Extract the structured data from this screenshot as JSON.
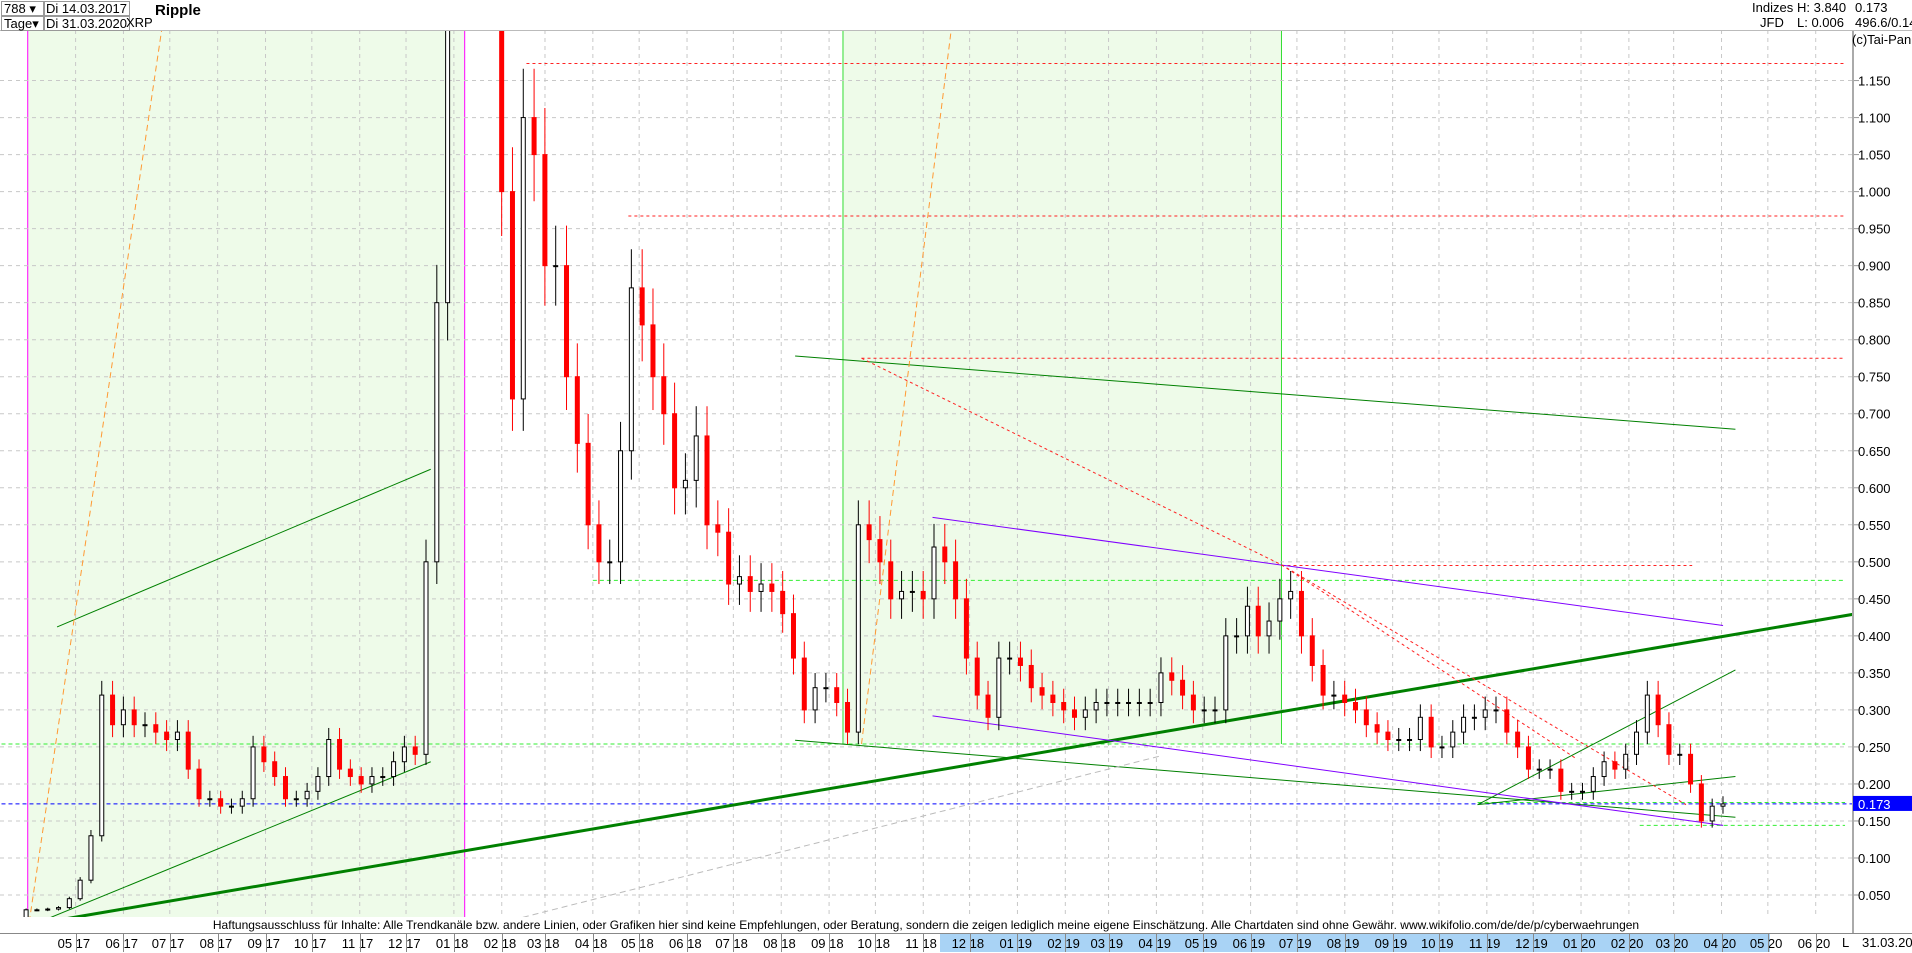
{
  "header": {
    "bars_count": "788",
    "period": "Tage",
    "date_from": "Di 14.03.2017",
    "date_to": "Di 31.03.2020",
    "symbol": "XRP",
    "name": "Ripple",
    "exchange_top": "Indizes",
    "exchange_bottom": "JFD",
    "high": "H: 3.840",
    "low": "L: 0.006",
    "last": "0.173",
    "extra": "496.6/0.14",
    "copyright": "(c)Tai-Pan"
  },
  "footer": {
    "disclaimer": "Haftungsausschluss für Inhalte: Alle Trendkanäle bzw. andere Linien, oder Grafiken hier sind keine Empfehlungen, oder Beratung, sondern die zeigen lediglich meine eigene Einschätzung. Alle Chartdaten sind ohne Gewähr.  www.wikifolio.com/de/de/p/cyberwaehrungen",
    "scale_mode": "L",
    "last_date": "31.03.20"
  },
  "colors": {
    "up": "#000000",
    "down": "#ff0000",
    "last_price_bg": "#0000ff",
    "green_zone": "#eefbe9",
    "trend_green": "#008000",
    "trend_purple": "#8000ff"
  },
  "chart_data": {
    "type": "candlestick",
    "title": "Ripple",
    "ylim": [
      0,
      1.2
    ],
    "yticks": [
      "0.050",
      "0.100",
      "0.150",
      "0.200",
      "0.250",
      "0.300",
      "0.350",
      "0.400",
      "0.450",
      "0.500",
      "0.550",
      "0.600",
      "0.650",
      "0.700",
      "0.750",
      "0.800",
      "0.850",
      "0.900",
      "0.950",
      "1.000",
      "1.050",
      "1.100",
      "1.150"
    ],
    "last_price_label": "0.173",
    "grid": true,
    "xticks": [
      "05 17",
      "06 17",
      "07 17",
      "08 17",
      "09 17",
      "10 17",
      "11 17",
      "12 17",
      "01 18",
      "02 18",
      "03 18",
      "04 18",
      "05 18",
      "06 18",
      "07 18",
      "08 18",
      "09 18",
      "10 18",
      "11 18",
      "12 18",
      "01 19",
      "02 19",
      "03 19",
      "04 19",
      "05 19",
      "06 19",
      "07 19",
      "08 19",
      "09 19",
      "10 19",
      "11 19",
      "12 19",
      "01 20",
      "02 20",
      "03 20",
      "04 20",
      "05 20",
      "06 20"
    ],
    "series": {
      "start_date": "2017-03-14",
      "interval": "week",
      "close": [
        0.008,
        0.009,
        0.03,
        0.03,
        0.031,
        0.033,
        0.045,
        0.07,
        0.13,
        0.32,
        0.28,
        0.3,
        0.28,
        0.28,
        0.27,
        0.26,
        0.27,
        0.22,
        0.18,
        0.18,
        0.17,
        0.17,
        0.18,
        0.25,
        0.23,
        0.21,
        0.18,
        0.18,
        0.19,
        0.21,
        0.26,
        0.22,
        0.21,
        0.2,
        0.21,
        0.21,
        0.23,
        0.25,
        0.24,
        0.5,
        0.85,
        1.3,
        2.8,
        1.9,
        1.4,
        1.3,
        1.0,
        0.72,
        1.1,
        1.05,
        0.9,
        0.9,
        0.75,
        0.66,
        0.55,
        0.5,
        0.5,
        0.65,
        0.87,
        0.82,
        0.75,
        0.7,
        0.6,
        0.61,
        0.67,
        0.55,
        0.54,
        0.47,
        0.48,
        0.46,
        0.47,
        0.46,
        0.43,
        0.37,
        0.3,
        0.33,
        0.33,
        0.31,
        0.27,
        0.55,
        0.53,
        0.5,
        0.45,
        0.46,
        0.46,
        0.45,
        0.52,
        0.5,
        0.45,
        0.37,
        0.32,
        0.29,
        0.37,
        0.37,
        0.36,
        0.33,
        0.32,
        0.31,
        0.3,
        0.29,
        0.3,
        0.31,
        0.31,
        0.31,
        0.31,
        0.31,
        0.31,
        0.35,
        0.34,
        0.32,
        0.3,
        0.3,
        0.3,
        0.4,
        0.4,
        0.44,
        0.4,
        0.42,
        0.45,
        0.46,
        0.4,
        0.36,
        0.32,
        0.32,
        0.31,
        0.3,
        0.28,
        0.27,
        0.26,
        0.26,
        0.26,
        0.29,
        0.25,
        0.25,
        0.27,
        0.29,
        0.29,
        0.3,
        0.3,
        0.27,
        0.25,
        0.22,
        0.22,
        0.22,
        0.19,
        0.19,
        0.19,
        0.21,
        0.23,
        0.22,
        0.24,
        0.27,
        0.32,
        0.28,
        0.24,
        0.24,
        0.2,
        0.15,
        0.17,
        0.173
      ]
    },
    "zones": [
      {
        "from": "2017-03-31",
        "to": "2018-01-08",
        "low": 0,
        "high": 1.3,
        "color": "#eefbe9",
        "edge": "#ff00ff"
      },
      {
        "from": "2018-09-10",
        "to": "2019-06-21",
        "low": 0.254,
        "high": 1.3,
        "color": "#eefbe9",
        "edge": "#33dd33"
      }
    ],
    "hlines": [
      {
        "price": 1.173,
        "from": "2018-02-17",
        "to": "2020-06-20",
        "color": "#ff2222",
        "dash": "3,3"
      },
      {
        "price": 0.967,
        "from": "2018-04-24",
        "to": "2020-06-20",
        "color": "#ff2222",
        "dash": "3,3"
      },
      {
        "price": 0.775,
        "from": "2018-09-22",
        "to": "2020-06-20",
        "color": "#ff2222",
        "dash": "3,3"
      },
      {
        "price": 0.495,
        "from": "2019-06-21",
        "to": "2020-03-13",
        "color": "#ff2222",
        "dash": "3,3"
      },
      {
        "price": 0.475,
        "from": "2018-04-01",
        "to": "2020-06-20",
        "color": "#33ee33",
        "dash": "4,3"
      },
      {
        "price": 0.254,
        "from": "2017-03-14",
        "to": "2020-06-20",
        "color": "#33ee33",
        "dash": "4,3"
      },
      {
        "price": 0.173,
        "from": "2017-03-14",
        "to": "2020-07-15",
        "color": "#0000ff",
        "dash": "4,3"
      },
      {
        "price": 0.175,
        "from": "2019-10-26",
        "to": "2020-06-20",
        "color": "#33ee33",
        "dash": "4,3"
      },
      {
        "price": 0.144,
        "from": "2020-02-08",
        "to": "2020-06-20",
        "color": "#33ee33",
        "dash": "4,3"
      }
    ],
    "trendlines": [
      {
        "from": [
          "2017-03-25",
          0.007
        ],
        "to": [
          "2020-08-06",
          0.444
        ],
        "color": "#008000",
        "width": 3
      },
      {
        "from": [
          "2017-04-19",
          0.412
        ],
        "to": [
          "2017-12-17",
          0.625
        ],
        "color": "#008000",
        "width": 1
      },
      {
        "from": [
          "2017-03-31",
          0.007
        ],
        "to": [
          "2017-12-17",
          0.23
        ],
        "color": "#008000",
        "width": 1
      },
      {
        "from": [
          "2018-08-10",
          0.778
        ],
        "to": [
          "2020-04-10",
          0.679
        ],
        "color": "#008000",
        "width": 1
      },
      {
        "from": [
          "2018-08-10",
          0.259
        ],
        "to": [
          "2020-04-10",
          0.155
        ],
        "color": "#008000",
        "width": 1
      },
      {
        "from": [
          "2019-10-26",
          0.172
        ],
        "to": [
          "2020-04-10",
          0.21
        ],
        "color": "#008000",
        "width": 1
      },
      {
        "from": [
          "2019-10-26",
          0.172
        ],
        "to": [
          "2020-04-10",
          0.354
        ],
        "color": "#008000",
        "width": 1
      },
      {
        "from": [
          "2018-11-07",
          0.56
        ],
        "to": [
          "2020-04-02",
          0.414
        ],
        "color": "#8000ff",
        "width": 1
      },
      {
        "from": [
          "2018-11-07",
          0.292
        ],
        "to": [
          "2020-04-02",
          0.144
        ],
        "color": "#8000ff",
        "width": 1
      },
      {
        "from": [
          "2018-01-08",
          0.0
        ],
        "to": [
          "2019-04-04",
          0.238
        ],
        "color": "#bbbbbb",
        "width": 1,
        "dash": "6,4"
      },
      {
        "from": [
          "2017-03-31",
          0.0
        ],
        "to": [
          "2017-06-28",
          1.25
        ],
        "color": "#ff9933",
        "width": 1,
        "dash": "6,4"
      },
      {
        "from": [
          "2018-09-22",
          0.254
        ],
        "to": [
          "2018-11-21",
          1.25
        ],
        "color": "#ff9933",
        "width": 1,
        "dash": "6,4"
      },
      {
        "from": [
          "2018-09-22",
          0.775
        ],
        "to": [
          "2019-06-21",
          0.496
        ],
        "color": "#ff2222",
        "width": 1,
        "dash": "3,3"
      },
      {
        "from": [
          "2019-06-21",
          0.496
        ],
        "to": [
          "2020-03-09",
          0.172
        ],
        "color": "#ff2222",
        "width": 1,
        "dash": "3,3"
      },
      {
        "from": [
          "2019-06-21",
          0.496
        ],
        "to": [
          "2019-12-29",
          0.234
        ],
        "color": "#ff2222",
        "width": 1,
        "dash": "3,3"
      }
    ]
  }
}
